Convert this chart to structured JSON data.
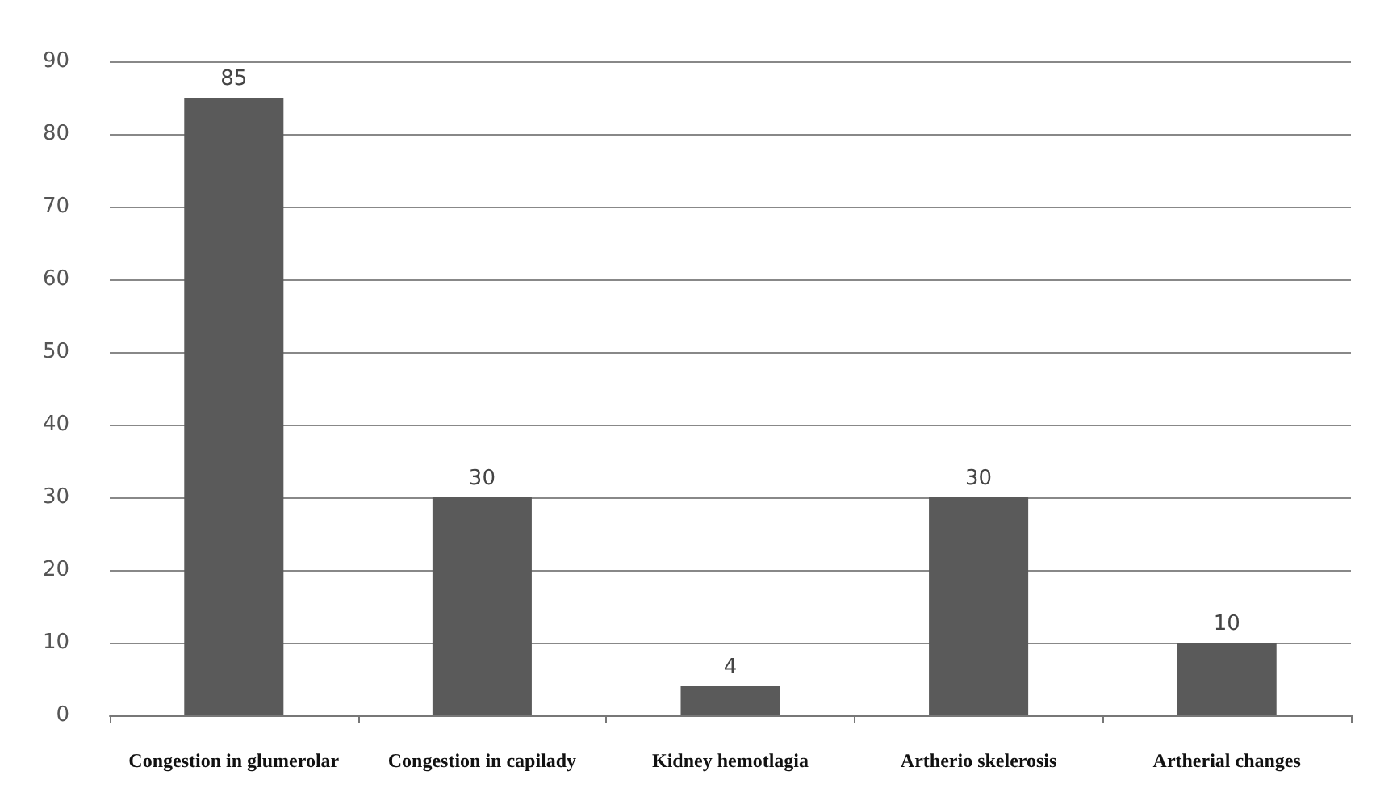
{
  "chart_data": {
    "type": "bar",
    "categories": [
      "Congestion in glumerolar",
      "Congestion in capilady",
      "Kidney hemotlagia",
      "Artherio skelerosis",
      "Artherial changes"
    ],
    "values": [
      85,
      30,
      4,
      30,
      10
    ],
    "color": "#5a5a5a",
    "ylim": [
      0,
      90
    ],
    "yticks": [
      0,
      10,
      20,
      30,
      40,
      50,
      60,
      70,
      80,
      90
    ],
    "grid": "y",
    "data_labels": true
  }
}
